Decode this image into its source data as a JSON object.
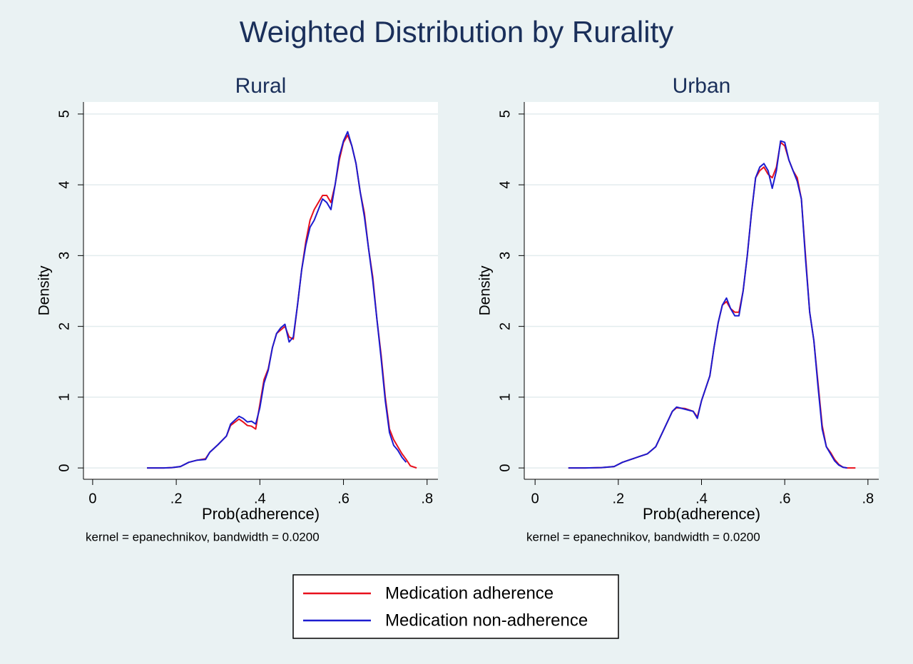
{
  "title": "Weighted Distribution by Rurality",
  "chart_data": [
    {
      "type": "line",
      "title": "Rural",
      "x_label": "Prob(adherence)",
      "y_label": "Density",
      "note": "kernel = epanechnikov, bandwidth = 0.0200",
      "xlim": [
        -0.022,
        0.826
      ],
      "ylim": [
        -0.16,
        5.17
      ],
      "xticks": [
        0,
        {
          "value": 0.2,
          "label": ".2"
        },
        {
          "value": 0.4,
          "label": ".4"
        },
        {
          "value": 0.6,
          "label": ".6"
        },
        {
          "value": 0.8,
          "label": ".8"
        }
      ],
      "yticks": [
        0,
        1,
        2,
        3,
        4,
        5
      ],
      "grid": true,
      "x": [
        0.13,
        0.15,
        0.17,
        0.19,
        0.21,
        0.23,
        0.25,
        0.27,
        0.28,
        0.3,
        0.32,
        0.33,
        0.35,
        0.36,
        0.37,
        0.38,
        0.39,
        0.4,
        0.41,
        0.42,
        0.43,
        0.44,
        0.45,
        0.46,
        0.47,
        0.48,
        0.49,
        0.5,
        0.51,
        0.52,
        0.53,
        0.54,
        0.55,
        0.56,
        0.57,
        0.58,
        0.59,
        0.6,
        0.61,
        0.62,
        0.63,
        0.64,
        0.65,
        0.66,
        0.67,
        0.68,
        0.69,
        0.7,
        0.71,
        0.72,
        0.73,
        0.74,
        0.75,
        0.76,
        0.775
      ],
      "series": [
        {
          "name": "Medication adherence",
          "color": "#e8101c",
          "values": [
            0,
            0,
            0,
            0.005,
            0.02,
            0.08,
            0.11,
            0.13,
            0.22,
            0.33,
            0.45,
            0.6,
            0.69,
            0.65,
            0.6,
            0.59,
            0.55,
            0.9,
            1.25,
            1.4,
            1.7,
            1.9,
            1.95,
            2.0,
            1.85,
            1.82,
            2.3,
            2.8,
            3.2,
            3.5,
            3.65,
            3.75,
            3.85,
            3.85,
            3.75,
            4.0,
            4.35,
            4.6,
            4.7,
            4.55,
            4.3,
            3.9,
            3.6,
            3.1,
            2.7,
            2.1,
            1.6,
            1.0,
            0.55,
            0.4,
            0.3,
            0.2,
            0.12,
            0.03,
            0
          ]
        },
        {
          "name": "Medication non-adherence",
          "color": "#1c1cd0",
          "values": [
            0,
            0,
            0,
            0.005,
            0.02,
            0.08,
            0.11,
            0.12,
            0.22,
            0.33,
            0.45,
            0.62,
            0.73,
            0.7,
            0.65,
            0.66,
            0.62,
            0.85,
            1.2,
            1.38,
            1.7,
            1.9,
            1.98,
            2.03,
            1.78,
            1.85,
            2.3,
            2.8,
            3.15,
            3.4,
            3.5,
            3.65,
            3.8,
            3.75,
            3.65,
            4.0,
            4.4,
            4.62,
            4.75,
            4.55,
            4.3,
            3.9,
            3.55,
            3.1,
            2.65,
            2.1,
            1.55,
            0.95,
            0.5,
            0.32,
            0.25,
            0.15,
            0.08,
            null,
            null
          ]
        }
      ]
    },
    {
      "type": "line",
      "title": "Urban",
      "x_label": "Prob(adherence)",
      "y_label": "Density",
      "note": "kernel = epanechnikov, bandwidth = 0.0200",
      "xlim": [
        -0.026,
        0.826
      ],
      "ylim": [
        -0.16,
        5.17
      ],
      "xticks": [
        0,
        {
          "value": 0.2,
          "label": ".2"
        },
        {
          "value": 0.4,
          "label": ".4"
        },
        {
          "value": 0.6,
          "label": ".6"
        },
        {
          "value": 0.8,
          "label": ".8"
        }
      ],
      "yticks": [
        0,
        1,
        2,
        3,
        4,
        5
      ],
      "grid": true,
      "x": [
        0.08,
        0.12,
        0.16,
        0.19,
        0.21,
        0.23,
        0.25,
        0.27,
        0.29,
        0.31,
        0.33,
        0.34,
        0.36,
        0.38,
        0.39,
        0.4,
        0.42,
        0.43,
        0.44,
        0.45,
        0.46,
        0.47,
        0.48,
        0.49,
        0.5,
        0.51,
        0.52,
        0.53,
        0.54,
        0.55,
        0.56,
        0.57,
        0.58,
        0.59,
        0.6,
        0.61,
        0.62,
        0.63,
        0.64,
        0.65,
        0.66,
        0.67,
        0.68,
        0.69,
        0.7,
        0.71,
        0.72,
        0.73,
        0.74,
        0.75,
        0.77
      ],
      "series": [
        {
          "name": "Medication adherence",
          "color": "#e8101c",
          "values": [
            0,
            0,
            0.005,
            0.02,
            0.08,
            0.12,
            0.16,
            0.2,
            0.3,
            0.55,
            0.8,
            0.85,
            0.84,
            0.8,
            0.72,
            0.95,
            1.3,
            1.7,
            2.05,
            2.3,
            2.35,
            2.25,
            2.2,
            2.2,
            2.5,
            3.0,
            3.6,
            4.1,
            4.2,
            4.25,
            4.15,
            4.1,
            4.25,
            4.6,
            4.55,
            4.35,
            4.2,
            4.1,
            3.8,
            3.0,
            2.2,
            1.8,
            1.2,
            0.6,
            0.3,
            0.22,
            0.12,
            0.05,
            0.01,
            0,
            0
          ]
        },
        {
          "name": "Medication non-adherence",
          "color": "#1c1cd0",
          "values": [
            0,
            0,
            0.005,
            0.02,
            0.08,
            0.12,
            0.16,
            0.2,
            0.3,
            0.55,
            0.8,
            0.86,
            0.83,
            0.8,
            0.7,
            0.95,
            1.3,
            1.7,
            2.05,
            2.3,
            2.4,
            2.25,
            2.15,
            2.15,
            2.5,
            3.0,
            3.6,
            4.1,
            4.25,
            4.3,
            4.2,
            3.95,
            4.2,
            4.62,
            4.6,
            4.35,
            4.2,
            4.05,
            3.8,
            2.95,
            2.2,
            1.8,
            1.15,
            0.55,
            0.3,
            0.2,
            0.1,
            0.04,
            0.01,
            0,
            null
          ]
        }
      ]
    }
  ]
}
